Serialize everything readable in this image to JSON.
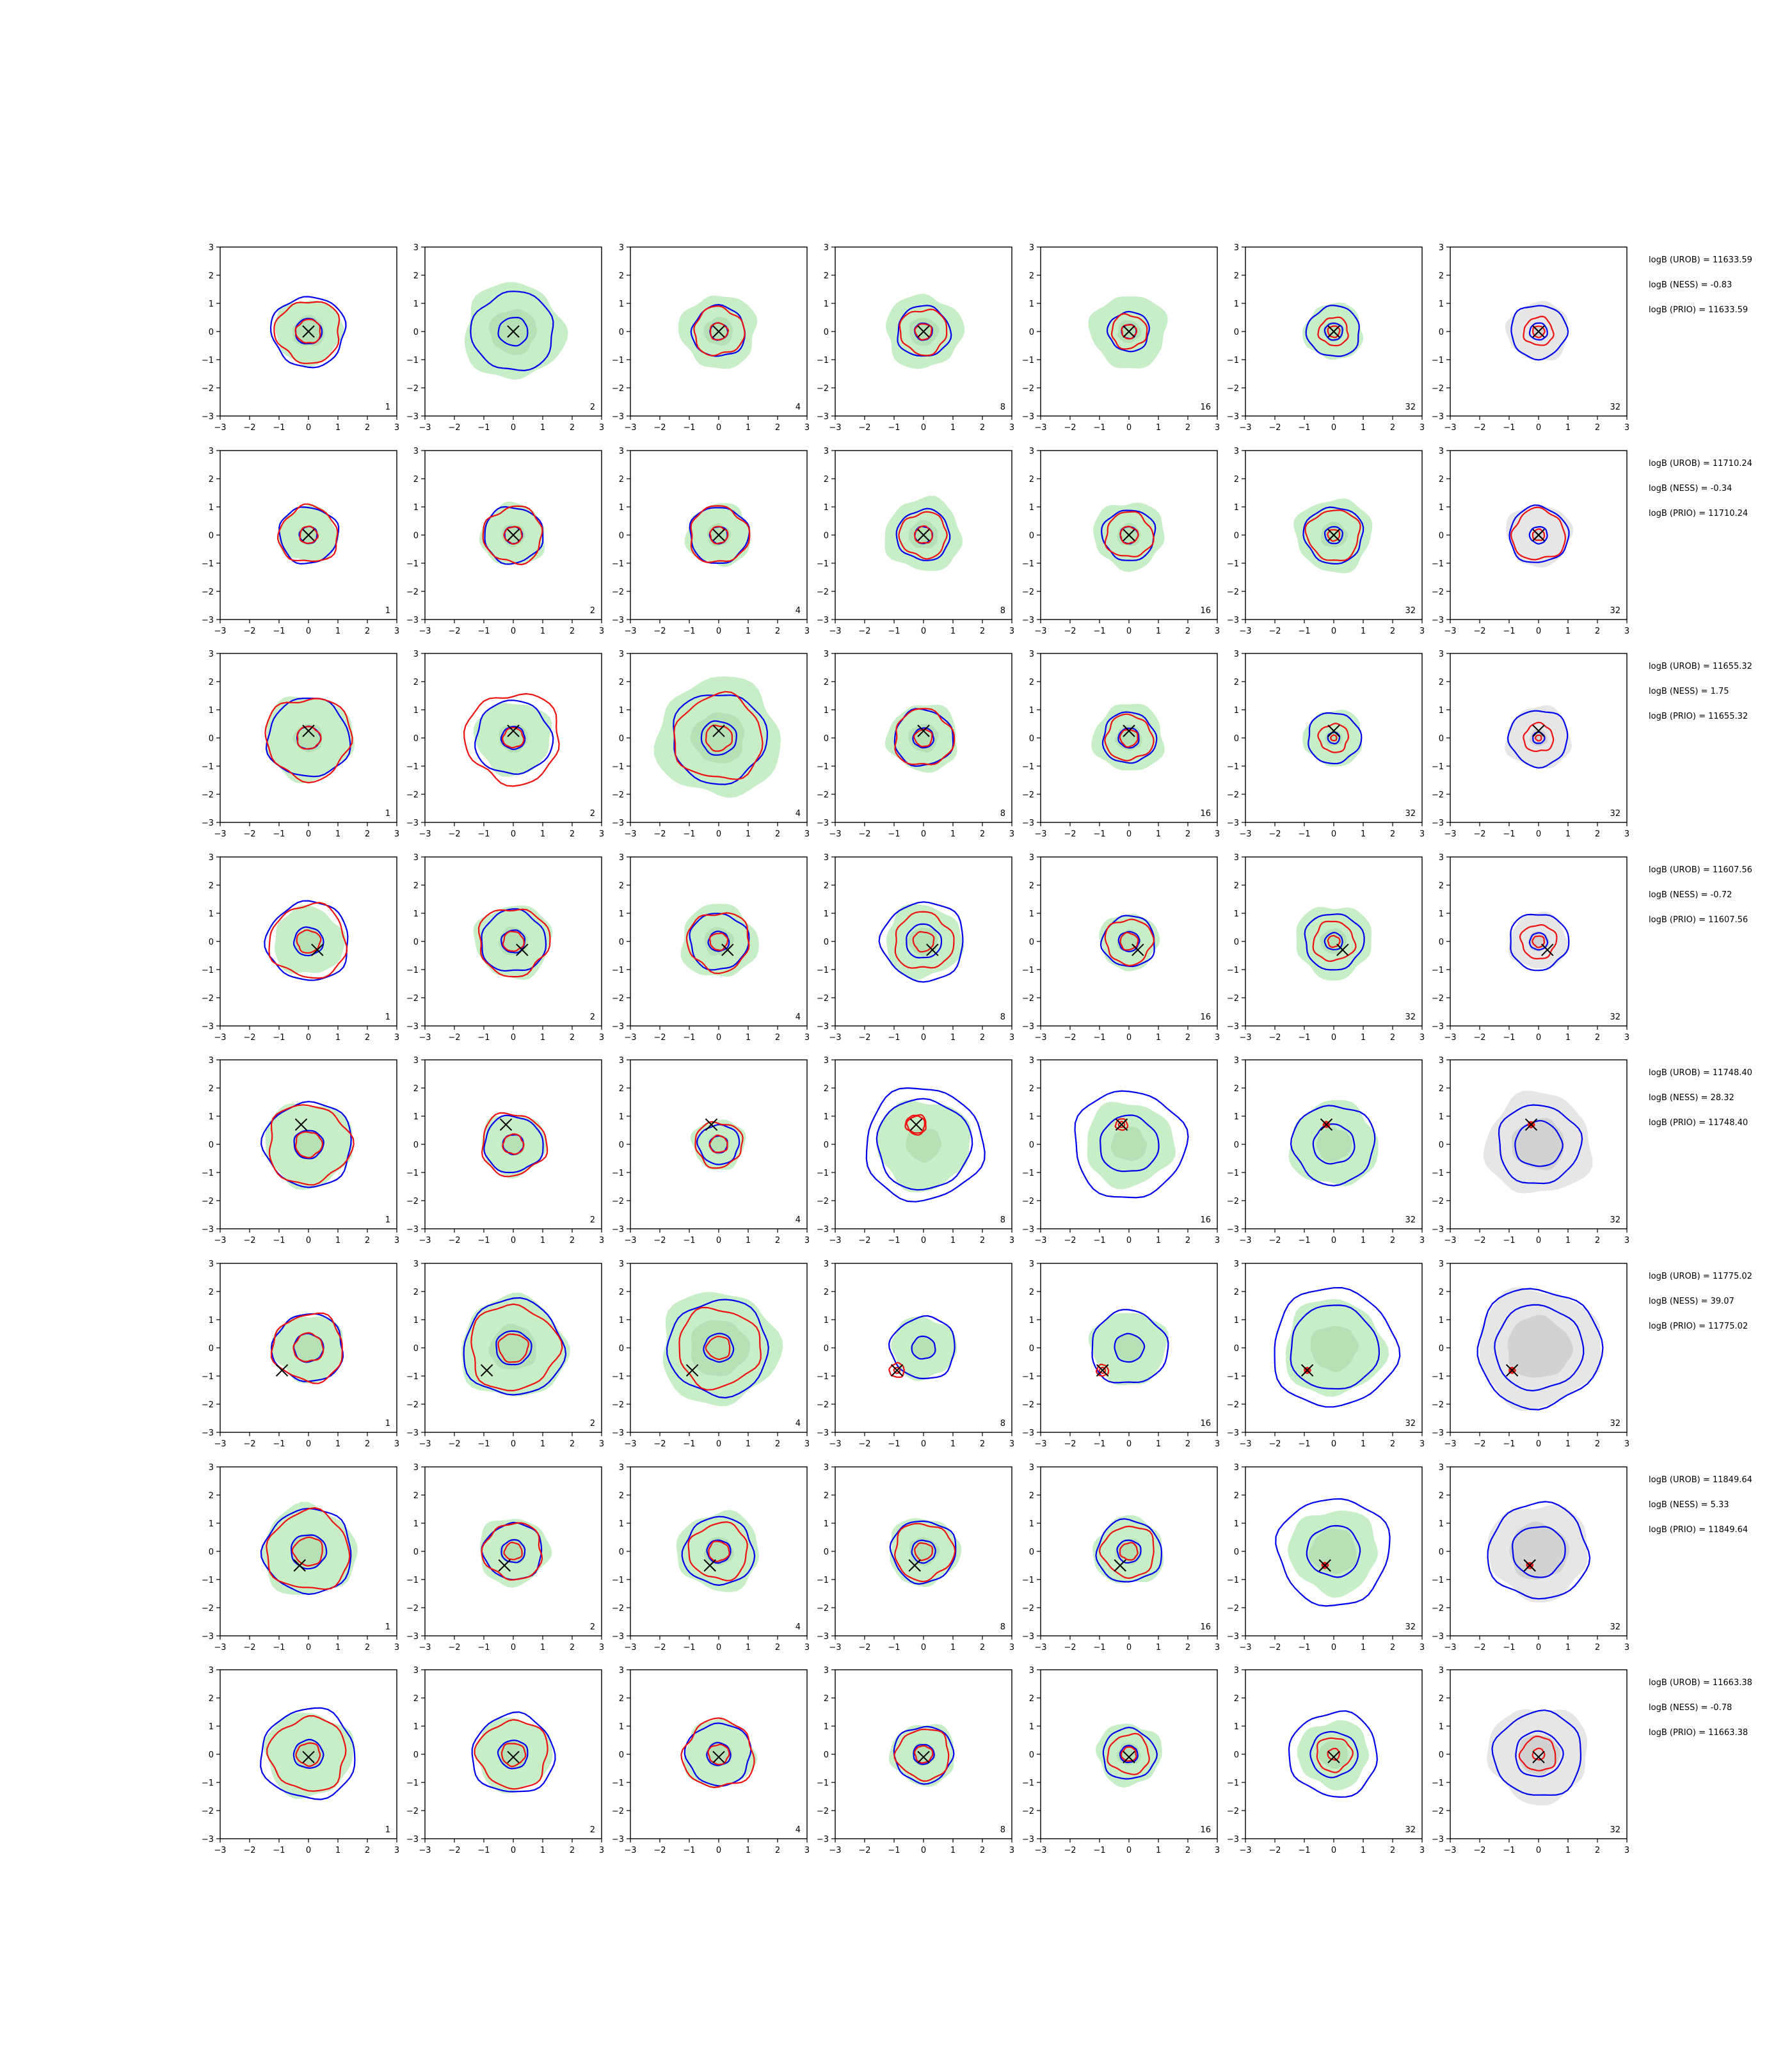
{
  "chart_data": {
    "type": "contour-grid",
    "rows": 8,
    "cols": 7,
    "xlim": [
      -3,
      3
    ],
    "ylim": [
      -3,
      3
    ],
    "ticks": [
      -3,
      -2,
      -1,
      0,
      1,
      2,
      3
    ],
    "tick_labels": [
      "−3",
      "−2",
      "−1",
      "0",
      "1",
      "2",
      "3"
    ],
    "column_labels": [
      "1",
      "2",
      "4",
      "8",
      "16",
      "32",
      "32"
    ],
    "colors": {
      "fill_green": "#c8eec8",
      "fill_green_dark": "#b6e0b6",
      "fill_gray": "#e6e6e6",
      "fill_gray_dark": "#d2d2d2",
      "blue": "#0000ee",
      "red": "#ee1111",
      "marker": "#000000"
    },
    "panels": [
      [
        {
          "m": [
            0,
            0
          ],
          "f": [
            1.15,
            0.55
          ],
          "b": [
            1.25,
            0.45
          ],
          "r": [
            1.1,
            0.42
          ]
        },
        {
          "m": [
            0,
            0
          ],
          "f": [
            1.7,
            0.8
          ],
          "b": [
            1.4,
            0.5
          ],
          "r": [
            0,
            0
          ]
        },
        {
          "m": [
            0,
            0
          ],
          "f": [
            1.3,
            0.5
          ],
          "b": [
            0.9,
            0.3
          ],
          "r": [
            0.85,
            0.3
          ]
        },
        {
          "m": [
            0,
            0
          ],
          "f": [
            1.3,
            0.5
          ],
          "b": [
            0.9,
            0.3
          ],
          "r": [
            0.8,
            0.28
          ]
        },
        {
          "m": [
            0,
            0
          ],
          "f": [
            1.3,
            0.4
          ],
          "b": [
            0.7,
            0.25
          ],
          "r": [
            0.6,
            0.25
          ]
        },
        {
          "m": [
            0,
            0
          ],
          "f": [
            1.0,
            0.35
          ],
          "b": [
            0.9,
            0.3
          ],
          "r": [
            0.5,
            0.2
          ]
        },
        {
          "m": [
            0,
            0
          ],
          "f": [
            0,
            0
          ],
          "b": [
            0.95,
            0.3
          ],
          "r": [
            0.5,
            0.2
          ]
        }
      ],
      [
        {
          "m": [
            0,
            0
          ],
          "f": [
            1.0,
            0.35
          ],
          "b": [
            1.0,
            0.3
          ],
          "r": [
            1.0,
            0.3
          ]
        },
        {
          "m": [
            0,
            0
          ],
          "f": [
            1.1,
            0.4
          ],
          "b": [
            1.0,
            0.3
          ],
          "r": [
            1.0,
            0.3
          ]
        },
        {
          "m": [
            0,
            0
          ],
          "f": [
            1.1,
            0.4
          ],
          "b": [
            1.0,
            0.3
          ],
          "r": [
            1.0,
            0.3
          ]
        },
        {
          "m": [
            0,
            0
          ],
          "f": [
            1.3,
            0.5
          ],
          "b": [
            0.9,
            0.3
          ],
          "r": [
            0.8,
            0.3
          ]
        },
        {
          "m": [
            0,
            0
          ],
          "f": [
            1.2,
            0.4
          ],
          "b": [
            0.9,
            0.3
          ],
          "r": [
            0.8,
            0.3
          ]
        },
        {
          "m": [
            0,
            0
          ],
          "f": [
            1.3,
            0.45
          ],
          "b": [
            1.0,
            0.3
          ],
          "r": [
            0.9,
            0.2
          ]
        },
        {
          "m": [
            0,
            0
          ],
          "f": [
            0,
            0
          ],
          "b": [
            1.0,
            0.3
          ],
          "r": [
            0.9,
            0.2
          ]
        }
      ],
      [
        {
          "m": [
            0,
            0.25
          ],
          "f": [
            1.5,
            0.5
          ],
          "b": [
            1.4,
            0.4
          ],
          "r": [
            1.45,
            0.4
          ]
        },
        {
          "m": [
            0,
            0.25
          ],
          "f": [
            1.3,
            0.5
          ],
          "b": [
            1.3,
            0.4
          ],
          "r": [
            1.6,
            0.35
          ]
        },
        {
          "m": [
            0,
            0.25
          ],
          "f": [
            2.1,
            0.9
          ],
          "b": [
            1.6,
            0.6
          ],
          "r": [
            1.5,
            0.45
          ]
        },
        {
          "m": [
            0,
            0.25
          ],
          "f": [
            1.2,
            0.5
          ],
          "b": [
            1.0,
            0.35
          ],
          "r": [
            1.0,
            0.3
          ]
        },
        {
          "m": [
            0,
            0.25
          ],
          "f": [
            1.2,
            0.45
          ],
          "b": [
            0.9,
            0.35
          ],
          "r": [
            0.8,
            0.3
          ]
        },
        {
          "m": [
            0,
            0.25
          ],
          "f": [
            1.0,
            0.3
          ],
          "b": [
            0.9,
            0.2
          ],
          "r": [
            0.5,
            0.1
          ]
        },
        {
          "m": [
            0,
            0.25
          ],
          "f": [
            1.1,
            0.3
          ],
          "b": [
            1.0,
            0.2
          ],
          "r": [
            0.5,
            0.1
          ]
        }
      ],
      [
        {
          "m": [
            0.3,
            -0.3
          ],
          "f": [
            1.2,
            0.45
          ],
          "b": [
            1.4,
            0.5
          ],
          "r": [
            1.3,
            0.4
          ]
        },
        {
          "m": [
            0.3,
            -0.3
          ],
          "f": [
            1.3,
            0.5
          ],
          "b": [
            1.1,
            0.4
          ],
          "r": [
            1.2,
            0.35
          ]
        },
        {
          "m": [
            0.3,
            -0.3
          ],
          "f": [
            1.3,
            0.5
          ],
          "b": [
            1.0,
            0.35
          ],
          "r": [
            1.05,
            0.3
          ]
        },
        {
          "m": [
            0.3,
            -0.3
          ],
          "f": [
            1.3,
            0.5
          ],
          "b": [
            1.4,
            0.6
          ],
          "r": [
            1.0,
            0.35
          ]
        },
        {
          "m": [
            0.3,
            -0.3
          ],
          "f": [
            1.0,
            0.4
          ],
          "b": [
            0.9,
            0.35
          ],
          "r": [
            0.8,
            0.3
          ]
        },
        {
          "m": [
            0.3,
            -0.3
          ],
          "f": [
            1.3,
            0.45
          ],
          "b": [
            1.0,
            0.3
          ],
          "r": [
            0.7,
            0.2
          ]
        },
        {
          "m": [
            0.3,
            -0.3
          ],
          "f": [
            1.0,
            0.35
          ],
          "b": [
            1.0,
            0.3
          ],
          "r": [
            0.6,
            0.2
          ]
        }
      ],
      [
        {
          "m": [
            -0.25,
            0.7
          ],
          "f": [
            1.5,
            0.5
          ],
          "b": [
            1.5,
            0.5
          ],
          "r": [
            1.4,
            0.45
          ]
        },
        {
          "m": [
            -0.25,
            0.7
          ],
          "f": [
            1.1,
            0.4
          ],
          "b": [
            1.0,
            0.35
          ],
          "r": [
            1.1,
            0.35
          ]
        },
        {
          "m": [
            -0.25,
            0.7
          ],
          "f": [
            0.9,
            0.35
          ],
          "b": [
            0.7,
            0.3
          ],
          "r": [
            0.8,
            0.3
          ]
        },
        {
          "m": [
            -0.25,
            0.7
          ],
          "f": [
            1.6,
            0.6
          ],
          "b": [
            2.0,
            1.6
          ],
          "r": [
            0.35,
            0.3
          ]
        },
        {
          "m": [
            -0.25,
            0.7
          ],
          "f": [
            1.5,
            0.6
          ],
          "b": [
            1.9,
            1.0
          ],
          "r": [
            0.2,
            0.1
          ]
        },
        {
          "m": [
            -0.25,
            0.7
          ],
          "f": [
            1.5,
            0.6
          ],
          "b": [
            1.4,
            0.7
          ],
          "r": [
            0.1,
            0.05
          ]
        },
        {
          "m": [
            -0.25,
            0.7
          ],
          "f": [
            1.8,
            0.9
          ],
          "b": [
            1.4,
            0.8
          ],
          "r": [
            0.1,
            0.05
          ]
        }
      ],
      [
        {
          "m": [
            -0.9,
            -0.8
          ],
          "f": [
            1.2,
            0.5
          ],
          "b": [
            1.2,
            0.5
          ],
          "r": [
            1.2,
            0.5
          ]
        },
        {
          "m": [
            -0.9,
            -0.8
          ],
          "f": [
            1.8,
            0.8
          ],
          "b": [
            1.7,
            0.6
          ],
          "r": [
            1.5,
            0.5
          ]
        },
        {
          "m": [
            -0.9,
            -0.8
          ],
          "f": [
            2.0,
            1.0
          ],
          "b": [
            1.7,
            0.5
          ],
          "r": [
            1.4,
            0.4
          ]
        },
        {
          "m": [
            -0.9,
            -0.8
          ],
          "f": [
            1.1,
            0.4
          ],
          "b": [
            1.1,
            0.4
          ],
          "r": [
            0.25,
            0.1
          ]
        },
        {
          "m": [
            -0.9,
            -0.8
          ],
          "f": [
            1.3,
            0.5
          ],
          "b": [
            1.3,
            0.5
          ],
          "r": [
            0.2,
            0.1
          ]
        },
        {
          "m": [
            -0.9,
            -0.8
          ],
          "f": [
            1.7,
            0.8
          ],
          "b": [
            2.1,
            1.5
          ],
          "r": [
            0.1,
            0.05
          ]
        },
        {
          "m": [
            -0.9,
            -0.8
          ],
          "f": [
            2.1,
            1.1
          ],
          "b": [
            2.1,
            1.5
          ],
          "r": [
            0.1,
            0.05
          ]
        }
      ],
      [
        {
          "m": [
            -0.3,
            -0.5
          ],
          "f": [
            1.6,
            0.6
          ],
          "b": [
            1.5,
            0.6
          ],
          "r": [
            1.4,
            0.5
          ]
        },
        {
          "m": [
            -0.3,
            -0.5
          ],
          "f": [
            1.2,
            0.45
          ],
          "b": [
            1.0,
            0.4
          ],
          "r": [
            1.0,
            0.3
          ]
        },
        {
          "m": [
            -0.3,
            -0.5
          ],
          "f": [
            1.4,
            0.5
          ],
          "b": [
            1.2,
            0.4
          ],
          "r": [
            1.0,
            0.35
          ]
        },
        {
          "m": [
            -0.3,
            -0.5
          ],
          "f": [
            1.2,
            0.5
          ],
          "b": [
            1.1,
            0.4
          ],
          "r": [
            1.0,
            0.3
          ]
        },
        {
          "m": [
            -0.3,
            -0.5
          ],
          "f": [
            1.2,
            0.45
          ],
          "b": [
            1.1,
            0.4
          ],
          "r": [
            0.9,
            0.3
          ]
        },
        {
          "m": [
            -0.3,
            -0.5
          ],
          "f": [
            1.5,
            0.8
          ],
          "b": [
            1.9,
            0.9
          ],
          "r": [
            0.1,
            0.05
          ]
        },
        {
          "m": [
            -0.3,
            -0.5
          ],
          "f": [
            1.7,
            1.0
          ],
          "b": [
            1.7,
            0.9
          ],
          "r": [
            0.1,
            0.05
          ]
        }
      ],
      [
        {
          "m": [
            0,
            -0.1
          ],
          "f": [
            1.5,
            0.5
          ],
          "b": [
            1.6,
            0.5
          ],
          "r": [
            1.3,
            0.4
          ]
        },
        {
          "m": [
            0,
            -0.1
          ],
          "f": [
            1.3,
            0.5
          ],
          "b": [
            1.4,
            0.5
          ],
          "r": [
            1.2,
            0.4
          ]
        },
        {
          "m": [
            0,
            -0.1
          ],
          "f": [
            1.2,
            0.45
          ],
          "b": [
            1.1,
            0.4
          ],
          "r": [
            1.2,
            0.35
          ]
        },
        {
          "m": [
            0,
            -0.1
          ],
          "f": [
            1.1,
            0.4
          ],
          "b": [
            1.0,
            0.35
          ],
          "r": [
            0.9,
            0.3
          ]
        },
        {
          "m": [
            0,
            -0.1
          ],
          "f": [
            1.1,
            0.4
          ],
          "b": [
            0.9,
            0.3
          ],
          "r": [
            0.7,
            0.25
          ]
        },
        {
          "m": [
            0,
            -0.1
          ],
          "f": [
            1.2,
            0.5
          ],
          "b": [
            1.5,
            0.8
          ],
          "r": [
            0.6,
            0.2
          ]
        },
        {
          "m": [
            0,
            -0.1
          ],
          "f": [
            1.7,
            0.7
          ],
          "b": [
            1.5,
            0.8
          ],
          "r": [
            0.6,
            0.2
          ]
        }
      ]
    ],
    "annotations": [
      [
        "logB (UROB) = 11633.59",
        "logB (NESS) = -0.83",
        "logB (PRIO) = 11633.59"
      ],
      [
        "logB (UROB) = 11710.24",
        "logB (NESS) = -0.34",
        "logB (PRIO) = 11710.24"
      ],
      [
        "logB (UROB) = 11655.32",
        "logB (NESS) = 1.75",
        "logB (PRIO) = 11655.32"
      ],
      [
        "logB (UROB) = 11607.56",
        "logB (NESS) = -0.72",
        "logB (PRIO) = 11607.56"
      ],
      [
        "logB (UROB) = 11748.40",
        "logB (NESS) = 28.32",
        "logB (PRIO) = 11748.40"
      ],
      [
        "logB (UROB) = 11775.02",
        "logB (NESS) = 39.07",
        "logB (PRIO) = 11775.02"
      ],
      [
        "logB (UROB) = 11849.64",
        "logB (NESS) = 5.33",
        "logB (PRIO) = 11849.64"
      ],
      [
        "logB (UROB) = 11663.38",
        "logB (NESS) = -0.78",
        "logB (PRIO) = 11663.38"
      ]
    ]
  }
}
